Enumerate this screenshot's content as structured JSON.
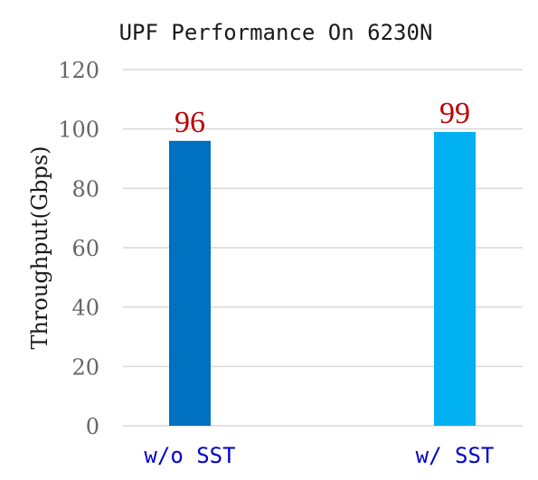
{
  "chart_data": {
    "type": "bar",
    "title": "UPF Performance On 6230N",
    "xlabel": "",
    "ylabel": "Throughput(Gbps)",
    "categories": [
      "w/o SST",
      "w/ SST"
    ],
    "values": [
      96,
      99
    ],
    "data_labels": [
      "96",
      "99"
    ],
    "ylim": [
      0,
      120
    ],
    "yticks": [
      0,
      20,
      40,
      60,
      80,
      100,
      120
    ],
    "ytick_labels": [
      "0",
      "20",
      "40",
      "60",
      "80",
      "100",
      "120"
    ],
    "grid": true,
    "legend": "none",
    "colors": {
      "bars": [
        "#0070C0",
        "#00B0F0"
      ],
      "data_labels": "#C00000",
      "category_labels": "#0000CC",
      "gridlines": "#d9d9d9"
    }
  }
}
